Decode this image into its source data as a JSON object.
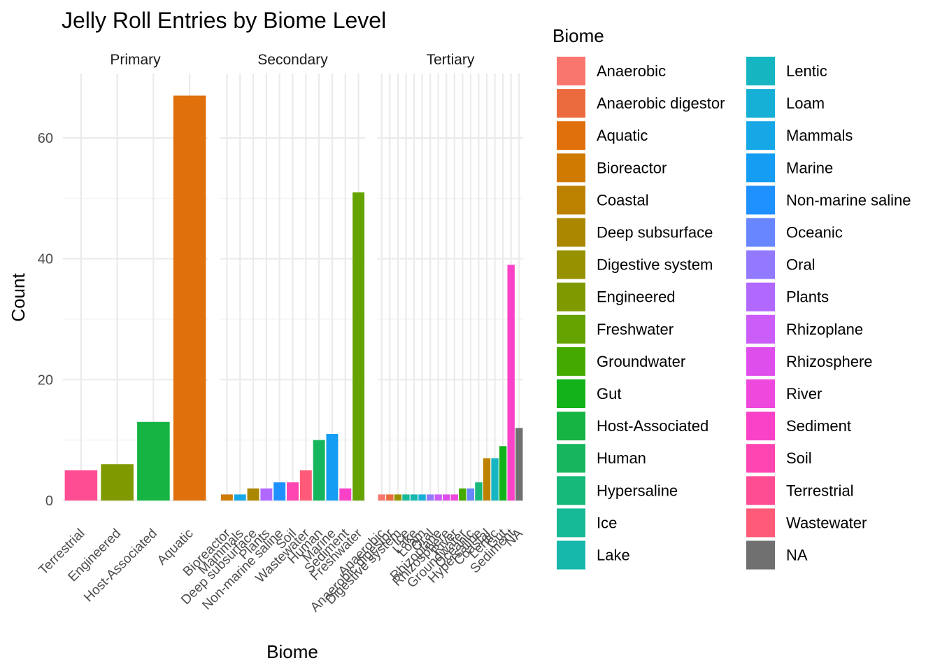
{
  "chart_data": {
    "type": "bar",
    "title": "Jelly Roll Entries by Biome Level",
    "xlabel": "Biome",
    "ylabel": "Count",
    "ylim": [
      0,
      70
    ],
    "yticks": [
      0,
      20,
      40,
      60
    ],
    "grid": true,
    "facets": [
      {
        "name": "Primary",
        "categories": [
          "Terrestrial",
          "Engineered",
          "Host-Associated",
          "Aquatic"
        ],
        "values": [
          5,
          6,
          13,
          67
        ]
      },
      {
        "name": "Secondary",
        "categories": [
          "Bioreactor",
          "Mammals",
          "Deep subsurface",
          "Plants",
          "Non-marine saline",
          "Soil",
          "Wastewater",
          "Human",
          "Marine",
          "Sediment",
          "Freshwater"
        ],
        "values": [
          1,
          1,
          2,
          2,
          3,
          3,
          5,
          10,
          11,
          2,
          51
        ]
      },
      {
        "name": "Tertiary",
        "categories": [
          "Anaerobic",
          "Anaerobic digestor",
          "Digestive system",
          "Ice",
          "Lake",
          "Loam",
          "Oral",
          "Rhizoplane",
          "Rhizosphere",
          "River",
          "Groundwater",
          "Oceanic",
          "Hypersaline",
          "Coastal",
          "Lentic",
          "Gut",
          "Sediment",
          "NA"
        ],
        "values": [
          1,
          1,
          1,
          1,
          1,
          1,
          1,
          1,
          1,
          1,
          2,
          2,
          3,
          7,
          7,
          9,
          39,
          12
        ]
      }
    ],
    "legend": {
      "title": "Biome",
      "placement": "right",
      "items": [
        {
          "label": "Anaerobic",
          "color": "#F8766D"
        },
        {
          "label": "Anaerobic digestor",
          "color": "#EC6B3E"
        },
        {
          "label": "Aquatic",
          "color": "#E0700B"
        },
        {
          "label": "Bioreactor",
          "color": "#CF7A00"
        },
        {
          "label": "Coastal",
          "color": "#BD8100"
        },
        {
          "label": "Deep subsurface",
          "color": "#AB8700"
        },
        {
          "label": "Digestive system",
          "color": "#979100"
        },
        {
          "label": "Engineered",
          "color": "#7F9A00"
        },
        {
          "label": "Freshwater",
          "color": "#65A300"
        },
        {
          "label": "Groundwater",
          "color": "#44AA00"
        },
        {
          "label": "Gut",
          "color": "#12B21A"
        },
        {
          "label": "Host-Associated",
          "color": "#15B443"
        },
        {
          "label": "Human",
          "color": "#15B65D"
        },
        {
          "label": "Hypersaline",
          "color": "#17B97B"
        },
        {
          "label": "Ice",
          "color": "#17BA96"
        },
        {
          "label": "Lake",
          "color": "#16B8AC"
        },
        {
          "label": "Lentic",
          "color": "#15B6C2"
        },
        {
          "label": "Loam",
          "color": "#16B0D7"
        },
        {
          "label": "Mammals",
          "color": "#16A8E6"
        },
        {
          "label": "Marine",
          "color": "#149DF2"
        },
        {
          "label": "Non-marine saline",
          "color": "#1F90FF"
        },
        {
          "label": "Oceanic",
          "color": "#6786FF"
        },
        {
          "label": "Oral",
          "color": "#9279FF"
        },
        {
          "label": "Plants",
          "color": "#B168FF"
        },
        {
          "label": "Rhizoplane",
          "color": "#CB5EF8"
        },
        {
          "label": "Rhizosphere",
          "color": "#DE4EEC"
        },
        {
          "label": "River",
          "color": "#EE48DD"
        },
        {
          "label": "Sediment",
          "color": "#FA42C8"
        },
        {
          "label": "Soil",
          "color": "#FF45B1"
        },
        {
          "label": "Terrestrial",
          "color": "#FF4D93"
        },
        {
          "label": "Wastewater",
          "color": "#FF5A78"
        },
        {
          "label": "NA",
          "color": "#707070"
        }
      ]
    }
  }
}
